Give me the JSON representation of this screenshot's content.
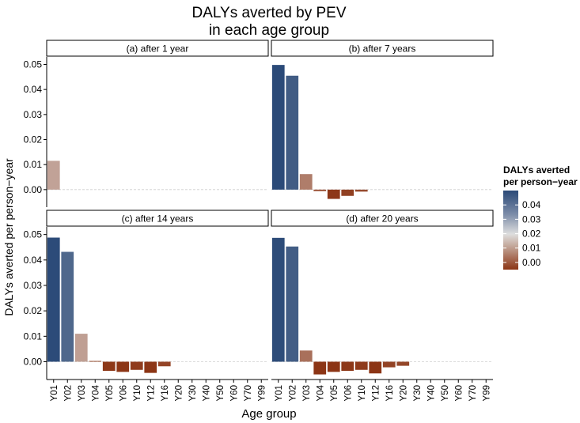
{
  "chart_data": {
    "type": "bar",
    "title_lines": [
      "DALYs averted by PEV",
      "in each age group"
    ],
    "xlabel": "Age group",
    "ylabel": "DALYs averted per person−year",
    "ylim": [
      -0.007,
      0.053
    ],
    "yticks": [
      0.0,
      0.01,
      0.02,
      0.03,
      0.04,
      0.05
    ],
    "ytick_labels": [
      "0.00",
      "0.01",
      "0.02",
      "0.03",
      "0.04",
      "0.05"
    ],
    "categories": [
      "Y01",
      "Y02",
      "Y03",
      "Y04",
      "Y05",
      "Y06",
      "Y10",
      "Y12",
      "Y16",
      "Y20",
      "Y30",
      "Y40",
      "Y50",
      "Y60",
      "Y70",
      "Y99"
    ],
    "facets": [
      {
        "label": "(a) after 1 year",
        "values": [
          0.0115,
          0,
          0,
          0,
          0,
          0,
          0,
          0,
          0,
          0,
          0,
          0,
          0,
          0,
          0,
          0
        ]
      },
      {
        "label": "(b) after 7 years",
        "values": [
          0.0498,
          0.0455,
          0.0062,
          -0.0006,
          -0.0037,
          -0.0025,
          -0.0008,
          0,
          0,
          0,
          0,
          0,
          0,
          0,
          0,
          0
        ]
      },
      {
        "label": "(c) after 14 years",
        "values": [
          0.0488,
          0.0432,
          0.011,
          0.0003,
          -0.0036,
          -0.004,
          -0.0032,
          -0.0044,
          -0.0018,
          0,
          0,
          0,
          0,
          0,
          0,
          0
        ]
      },
      {
        "label": "(d) after 20 years",
        "values": [
          0.0487,
          0.0453,
          0.0044,
          -0.005,
          -0.004,
          -0.0036,
          -0.0032,
          -0.0046,
          -0.0022,
          -0.0016,
          0,
          0,
          0,
          0,
          0,
          0
        ]
      }
    ],
    "legend": {
      "title_lines": [
        "DALYs averted",
        "per person−year"
      ],
      "ticks": [
        0.0,
        0.01,
        0.02,
        0.03,
        0.04
      ],
      "tick_labels": [
        "0.00",
        "0.01",
        "0.02",
        "0.03",
        "0.04"
      ],
      "range": [
        -0.005,
        0.05
      ],
      "placement": "right"
    },
    "colors": {
      "high": "#2b4a78",
      "mid": "#dedede",
      "low": "#8c3515"
    },
    "grid": false
  }
}
